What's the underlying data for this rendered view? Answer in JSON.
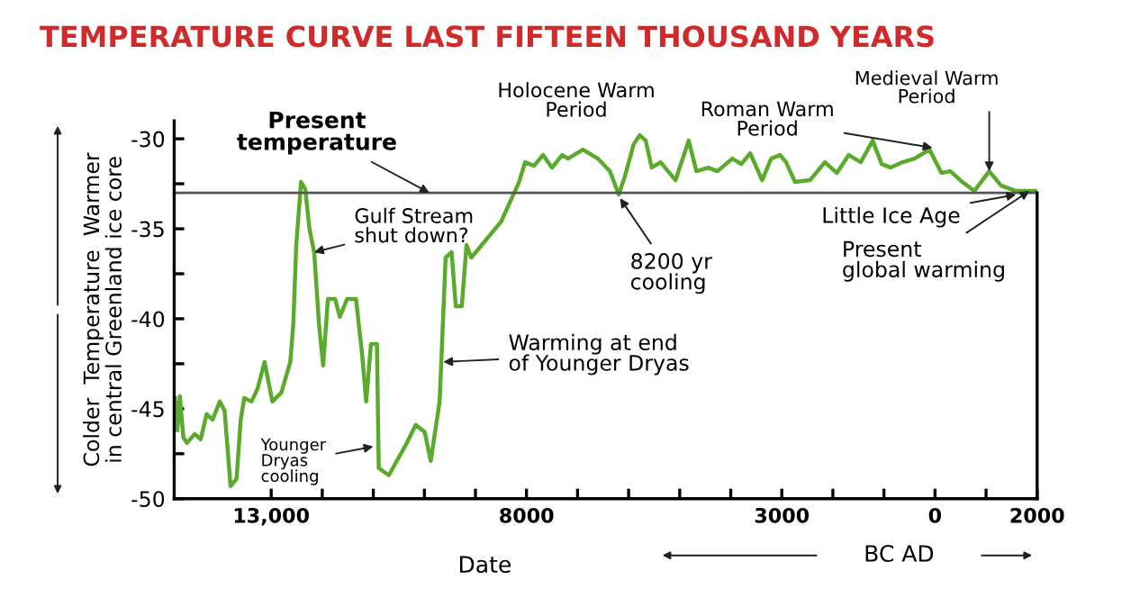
{
  "chart_data": {
    "type": "line",
    "title": "TEMPERATURE CURVE LAST FIFTEEN THOUSAND YEARS",
    "xlabel": "Date",
    "ylabel": "Colder  Temperature  Warmer\nin central Greenland ice core",
    "x": [
      -14884,
      -14837,
      -14790,
      -14720,
      -14650,
      -14498,
      -14381,
      -14264,
      -14147,
      -14007,
      -13913,
      -13796,
      -13679,
      -13597,
      -13527,
      -13386,
      -13269,
      -13129,
      -12977,
      -12801,
      -12626,
      -12567,
      -12509,
      -12415,
      -12333,
      -12251,
      -12158,
      -12064,
      -11982,
      -11889,
      -11748,
      -11655,
      -11514,
      -11339,
      -11222,
      -11140,
      -11046,
      -10929,
      -10894,
      -10695,
      -10344,
      -10168,
      -9993,
      -9876,
      -9701,
      -9584,
      -9467,
      -9385,
      -9268,
      -9174,
      -9081,
      -8496,
      -8145,
      -8028,
      -7853,
      -7677,
      -7502,
      -7302,
      -7187,
      -6895,
      -6602,
      -6368,
      -6193,
      -6076,
      -5900,
      -5783,
      -5666,
      -5549,
      -5374,
      -5081,
      -4824,
      -4672,
      -4438,
      -4262,
      -3970,
      -3794,
      -3619,
      -3385,
      -3209,
      -3034,
      -2917,
      -2741,
      -2449,
      -2156,
      -1922,
      -1688,
      -1454,
      -1220,
      -1045,
      -869,
      -635,
      -401,
      -108,
      126,
      301,
      535,
      769,
      1062,
      1296,
      1588,
      1764,
      2000
    ],
    "series": [
      {
        "color": "#5aaa2c",
        "values": [
          -44.4,
          -46.2,
          -44.3,
          -46.6,
          -46.9,
          -46.4,
          -46.7,
          -45.3,
          -45.6,
          -44.6,
          -45.1,
          -49.3,
          -48.9,
          -45.6,
          -44.4,
          -44.6,
          -43.9,
          -42.4,
          -44.6,
          -44.1,
          -42.4,
          -40.3,
          -35.9,
          -32.4,
          -32.8,
          -35.0,
          -36.3,
          -40.3,
          -42.6,
          -38.9,
          -38.9,
          -39.9,
          -38.9,
          -38.9,
          -41.9,
          -44.6,
          -41.4,
          -41.4,
          -48.3,
          -48.7,
          -46.9,
          -45.9,
          -46.3,
          -47.9,
          -44.6,
          -36.6,
          -36.3,
          -39.3,
          -39.3,
          -35.9,
          -36.6,
          -34.6,
          -32.4,
          -31.3,
          -31.5,
          -30.9,
          -31.6,
          -30.9,
          -31.1,
          -30.6,
          -31.1,
          -31.8,
          -33.1,
          -32.1,
          -30.3,
          -29.8,
          -30.1,
          -31.6,
          -31.3,
          -32.3,
          -30.1,
          -31.8,
          -31.6,
          -31.8,
          -31.1,
          -31.4,
          -30.8,
          -32.3,
          -31.1,
          -30.9,
          -31.3,
          -32.4,
          -32.3,
          -31.3,
          -31.9,
          -30.9,
          -31.3,
          -30.1,
          -31.4,
          -31.6,
          -31.3,
          -31.1,
          -30.6,
          -31.9,
          -31.8,
          -32.4,
          -32.9,
          -31.8,
          -32.6,
          -32.9,
          -32.9,
          -32.9
        ]
      }
    ],
    "xlim": [
      -14900,
      2000
    ],
    "xticks": [
      {
        "value": -13000,
        "label": "13,000"
      },
      {
        "value": -12000,
        "label": null
      },
      {
        "value": -11000,
        "label": null
      },
      {
        "value": -10000,
        "label": null
      },
      {
        "value": -9000,
        "label": null
      },
      {
        "value": -8000,
        "label": "8000"
      },
      {
        "value": -7000,
        "label": null
      },
      {
        "value": -6000,
        "label": null
      },
      {
        "value": -5000,
        "label": null
      },
      {
        "value": -4000,
        "label": null
      },
      {
        "value": -3000,
        "label": "3000"
      },
      {
        "value": -2000,
        "label": null
      },
      {
        "value": -1000,
        "label": null
      },
      0,
      {
        "value": 1000,
        "label": null
      },
      2000
    ],
    "ylim": [
      -50,
      -29
    ],
    "yticks": [
      -50,
      {
        "value": -47.5,
        "label": null
      },
      -45,
      {
        "value": -42.5,
        "label": null
      },
      -40,
      {
        "value": -37.5,
        "label": null
      },
      -35,
      {
        "value": -32.5,
        "label": null
      },
      -30
    ],
    "ref_lines": [
      {
        "axis": "y",
        "value": -33,
        "color": "#555555"
      }
    ],
    "annotations": [
      {
        "text": "Present\ntemperature",
        "x": -9900,
        "y": -33
      },
      {
        "text": "Gulf Stream\nshut down?",
        "x": -12158,
        "y": -36.3
      },
      {
        "text": "Younger\nDryas\ncooling",
        "x": -11000,
        "y": -47.1
      },
      {
        "text": "Warming at end\nof Younger Dryas",
        "x": -9630,
        "y": -42.4
      },
      "Holocene Warm\nPeriod",
      {
        "text": "8200 yr\ncooling",
        "x": -6169,
        "y": -33.3
      },
      {
        "text": "Roman Warm\nPeriod",
        "x": -50,
        "y": -30.5
      },
      {
        "text": "Medieval Warm\nPeriod",
        "x": 1062,
        "y": -31.8
      },
      {
        "text": "Little Ice Age",
        "x": 1588,
        "y": -33.1
      },
      {
        "text": "Present\nglobal warming",
        "x": 1850,
        "y": -32.9
      },
      "BC AD"
    ],
    "grid": false,
    "legend": false
  }
}
